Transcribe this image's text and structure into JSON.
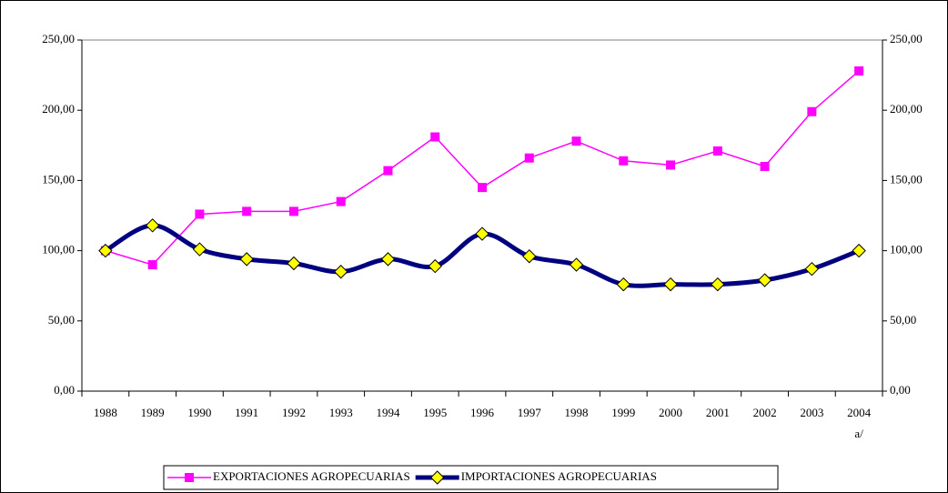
{
  "chart_data": {
    "type": "line",
    "categories": [
      "1988",
      "1989",
      "1990",
      "1991",
      "1992",
      "1993",
      "1994",
      "1995",
      "1996",
      "1997",
      "1998",
      "1999",
      "2000",
      "2001",
      "2002",
      "2003",
      "2004"
    ],
    "annotation": "a/",
    "series": [
      {
        "name": "EXPORTACIONES AGROPECUARIAS",
        "color": "#ff00ff",
        "marker": "square",
        "smooth": false,
        "values": [
          100,
          90,
          126,
          128,
          128,
          135,
          157,
          181,
          145,
          166,
          178,
          164,
          161,
          171,
          160,
          199,
          228
        ]
      },
      {
        "name": "IMPORTACIONES AGROPECUARIAS",
        "color": "#000080",
        "marker": "diamond",
        "marker_fill": "#ffff00",
        "smooth": true,
        "values": [
          100,
          118,
          101,
          94,
          91,
          85,
          94,
          89,
          112,
          96,
          90,
          76,
          76,
          76,
          79,
          87,
          100
        ]
      }
    ],
    "ylim": [
      0,
      250
    ],
    "yticks": [
      {
        "value": 0,
        "label": "0,00"
      },
      {
        "value": 50,
        "label": "50,00"
      },
      {
        "value": 100,
        "label": "100,00"
      },
      {
        "value": 150,
        "label": "150,00"
      },
      {
        "value": 200,
        "label": "200,00"
      },
      {
        "value": 250,
        "label": "250,00"
      }
    ],
    "grid": false,
    "legend": "bottom"
  }
}
